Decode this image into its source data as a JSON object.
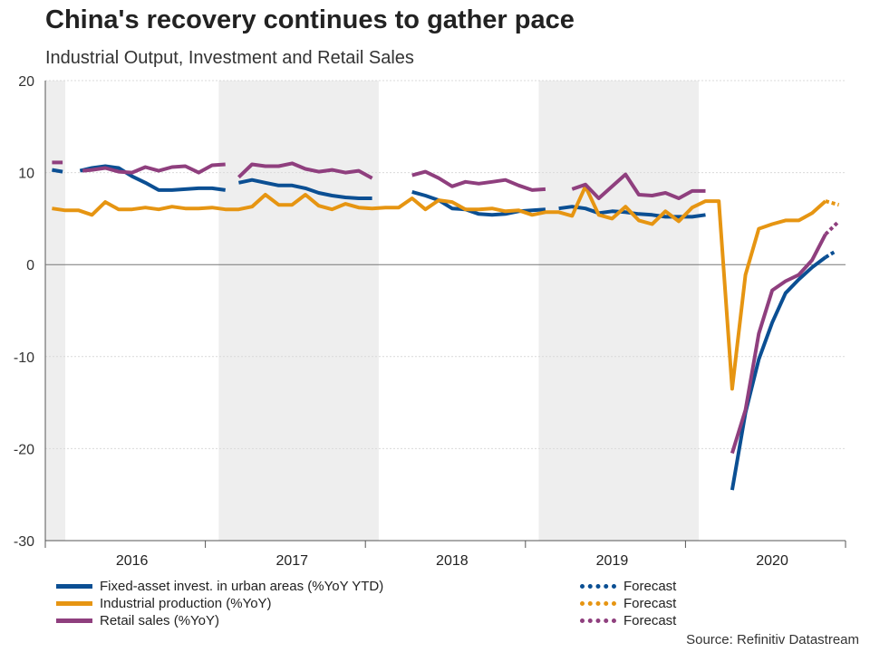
{
  "title": "China's recovery continues to gather pace",
  "subtitle": "Industrial Output, Investment and Retail Sales",
  "source": "Source: Refinitiv Datastream",
  "colors": {
    "fai": "#0b4f93",
    "ip": "#e69512",
    "rs": "#8f3f7e",
    "shade": "#eeeeee",
    "grid": "#d9d9d9",
    "zero": "#777777"
  },
  "legend": [
    {
      "label": "Fixed-asset invest. in urban areas (%YoY YTD)",
      "series": "fai",
      "style": "solid"
    },
    {
      "label": "Industrial production (%YoY)",
      "series": "ip",
      "style": "solid"
    },
    {
      "label": "Retail sales (%YoY)",
      "series": "rs",
      "style": "solid"
    },
    {
      "label": "Forecast",
      "series": "fai",
      "style": "dotted"
    },
    {
      "label": "Forecast",
      "series": "ip",
      "style": "dotted"
    },
    {
      "label": "Forecast",
      "series": "rs",
      "style": "dotted"
    }
  ],
  "chart_data": {
    "type": "line",
    "x_unit": "month index (0 = Dec 2015, 12 = Dec 2016, ...)",
    "xlim": [
      0,
      60
    ],
    "ylim": [
      -30,
      20
    ],
    "yticks": [
      20,
      10,
      0,
      -10,
      -20,
      -30
    ],
    "ytick_labels": [
      "20",
      "10",
      "0",
      "-10",
      "-20",
      "-30"
    ],
    "year_labels": [
      {
        "label": "2016",
        "x": 6.5
      },
      {
        "label": "2017",
        "x": 18.5
      },
      {
        "label": "2018",
        "x": 30.5
      },
      {
        "label": "2019",
        "x": 42.5
      },
      {
        "label": "2020",
        "x": 54.5
      }
    ],
    "shaded_bands": [
      [
        0,
        1.5
      ],
      [
        13,
        25
      ],
      [
        37,
        49
      ]
    ],
    "grid": true,
    "series": [
      {
        "key": "fai",
        "name": "Fixed-asset invest. in urban areas (%YoY YTD)",
        "segments": [
          [
            [
              0.5,
              10.3
            ],
            [
              1.3,
              10.1
            ]
          ],
          [
            [
              2.6,
              10.2
            ],
            [
              3.5,
              10.5
            ],
            [
              4.5,
              10.7
            ],
            [
              5.5,
              10.5
            ],
            [
              6.5,
              9.6
            ],
            [
              7.5,
              8.9
            ],
            [
              8.5,
              8.1
            ],
            [
              9.5,
              8.1
            ],
            [
              10.5,
              8.2
            ],
            [
              11.5,
              8.3
            ],
            [
              12.5,
              8.3
            ],
            [
              13.5,
              8.1
            ]
          ],
          [
            [
              14.5,
              8.9
            ],
            [
              15.5,
              9.2
            ],
            [
              16.5,
              8.9
            ],
            [
              17.5,
              8.6
            ],
            [
              18.5,
              8.6
            ],
            [
              19.5,
              8.3
            ],
            [
              20.5,
              7.8
            ],
            [
              21.5,
              7.5
            ],
            [
              22.5,
              7.3
            ],
            [
              23.5,
              7.2
            ],
            [
              24.5,
              7.2
            ]
          ],
          [
            [
              27.5,
              7.9
            ],
            [
              28.5,
              7.5
            ],
            [
              29.5,
              7.0
            ],
            [
              30.5,
              6.1
            ],
            [
              31.5,
              6.0
            ],
            [
              32.5,
              5.5
            ],
            [
              33.5,
              5.4
            ],
            [
              34.5,
              5.5
            ],
            [
              35.5,
              5.8
            ],
            [
              36.5,
              5.9
            ],
            [
              37.5,
              6.0
            ]
          ],
          [
            [
              38.5,
              6.1
            ],
            [
              39.5,
              6.3
            ],
            [
              40.5,
              6.1
            ],
            [
              41.5,
              5.6
            ],
            [
              42.5,
              5.8
            ],
            [
              43.5,
              5.7
            ],
            [
              44.5,
              5.5
            ],
            [
              45.5,
              5.4
            ],
            [
              46.5,
              5.2
            ],
            [
              47.5,
              5.2
            ],
            [
              48.5,
              5.2
            ],
            [
              49.5,
              5.4
            ]
          ],
          [
            [
              51.5,
              -24.5
            ],
            [
              52.5,
              -16.1
            ],
            [
              53.5,
              -10.3
            ],
            [
              54.5,
              -6.3
            ],
            [
              55.5,
              -3.1
            ],
            [
              56.5,
              -1.6
            ],
            [
              57.5,
              -0.3
            ],
            [
              58.5,
              0.8
            ]
          ]
        ],
        "forecast": [
          [
            58.5,
            0.8
          ],
          [
            59.3,
            1.5
          ]
        ]
      },
      {
        "key": "ip",
        "name": "Industrial production (%YoY)",
        "segments": [
          [
            [
              0.5,
              6.1
            ],
            [
              1.5,
              5.9
            ],
            [
              2.5,
              5.9
            ],
            [
              3.5,
              5.4
            ],
            [
              4.5,
              6.8
            ],
            [
              5.5,
              6.0
            ],
            [
              6.5,
              6.0
            ],
            [
              7.5,
              6.2
            ],
            [
              8.5,
              6.0
            ],
            [
              9.5,
              6.3
            ],
            [
              10.5,
              6.1
            ],
            [
              11.5,
              6.1
            ],
            [
              12.5,
              6.2
            ],
            [
              13.5,
              6.0
            ],
            [
              14.5,
              6.0
            ],
            [
              15.5,
              6.3
            ],
            [
              16.5,
              7.6
            ],
            [
              17.5,
              6.5
            ],
            [
              18.5,
              6.5
            ],
            [
              19.5,
              7.6
            ],
            [
              20.5,
              6.4
            ],
            [
              21.5,
              6.0
            ],
            [
              22.5,
              6.6
            ],
            [
              23.5,
              6.2
            ],
            [
              24.5,
              6.1
            ],
            [
              25.5,
              6.2
            ],
            [
              26.5,
              6.2
            ],
            [
              27.5,
              7.2
            ],
            [
              28.5,
              6.0
            ],
            [
              29.5,
              7.0
            ],
            [
              30.5,
              6.8
            ],
            [
              31.5,
              6.0
            ],
            [
              32.5,
              6.0
            ],
            [
              33.5,
              6.1
            ],
            [
              34.5,
              5.8
            ],
            [
              35.5,
              5.9
            ],
            [
              36.5,
              5.4
            ],
            [
              37.5,
              5.7
            ],
            [
              38.5,
              5.7
            ],
            [
              39.5,
              5.3
            ],
            [
              40.5,
              8.5
            ],
            [
              41.5,
              5.4
            ],
            [
              42.5,
              5.0
            ],
            [
              43.5,
              6.3
            ],
            [
              44.5,
              4.8
            ],
            [
              45.5,
              4.4
            ],
            [
              46.5,
              5.8
            ],
            [
              47.5,
              4.7
            ],
            [
              48.5,
              6.2
            ],
            [
              49.5,
              6.9
            ],
            [
              50.5,
              6.9
            ],
            [
              51.5,
              -13.5
            ],
            [
              52.5,
              -1.1
            ],
            [
              53.5,
              3.9
            ],
            [
              54.5,
              4.4
            ],
            [
              55.5,
              4.8
            ],
            [
              56.5,
              4.8
            ],
            [
              57.5,
              5.6
            ],
            [
              58.5,
              6.9
            ]
          ]
        ],
        "forecast": [
          [
            58.5,
            6.9
          ],
          [
            59.5,
            6.5
          ]
        ]
      },
      {
        "key": "rs",
        "name": "Retail sales (%YoY)",
        "segments": [
          [
            [
              0.5,
              11.1
            ],
            [
              1.3,
              11.1
            ]
          ],
          [
            [
              2.8,
              10.2
            ],
            [
              3.5,
              10.3
            ],
            [
              4.5,
              10.5
            ],
            [
              5.5,
              10.1
            ],
            [
              6.5,
              10.0
            ],
            [
              7.5,
              10.6
            ],
            [
              8.5,
              10.2
            ],
            [
              9.5,
              10.6
            ],
            [
              10.5,
              10.7
            ],
            [
              11.5,
              10.0
            ],
            [
              12.5,
              10.8
            ],
            [
              13.5,
              10.9
            ]
          ],
          [
            [
              14.5,
              9.5
            ],
            [
              15.5,
              10.9
            ],
            [
              16.5,
              10.7
            ],
            [
              17.5,
              10.7
            ],
            [
              18.5,
              11.0
            ],
            [
              19.5,
              10.4
            ],
            [
              20.5,
              10.1
            ],
            [
              21.5,
              10.3
            ],
            [
              22.5,
              10.0
            ],
            [
              23.5,
              10.2
            ],
            [
              24.5,
              9.4
            ]
          ],
          [
            [
              27.5,
              9.7
            ],
            [
              28.5,
              10.1
            ],
            [
              29.5,
              9.4
            ],
            [
              30.5,
              8.5
            ],
            [
              31.5,
              9.0
            ],
            [
              32.5,
              8.8
            ],
            [
              33.5,
              9.0
            ],
            [
              34.5,
              9.2
            ],
            [
              35.5,
              8.6
            ],
            [
              36.5,
              8.1
            ],
            [
              37.5,
              8.2
            ]
          ],
          [
            [
              39.5,
              8.2
            ],
            [
              40.5,
              8.7
            ],
            [
              41.5,
              7.2
            ],
            [
              42.5,
              8.5
            ],
            [
              43.5,
              9.8
            ],
            [
              44.5,
              7.6
            ],
            [
              45.5,
              7.5
            ],
            [
              46.5,
              7.8
            ],
            [
              47.5,
              7.2
            ],
            [
              48.5,
              8.0
            ],
            [
              49.5,
              8.0
            ]
          ],
          [
            [
              51.5,
              -20.5
            ],
            [
              52.5,
              -15.8
            ],
            [
              53.5,
              -7.5
            ],
            [
              54.5,
              -2.8
            ],
            [
              55.5,
              -1.8
            ],
            [
              56.5,
              -1.1
            ],
            [
              57.5,
              0.5
            ],
            [
              58.5,
              3.3
            ]
          ]
        ],
        "forecast": [
          [
            58.5,
            3.3
          ],
          [
            59.5,
            4.7
          ]
        ]
      }
    ]
  }
}
